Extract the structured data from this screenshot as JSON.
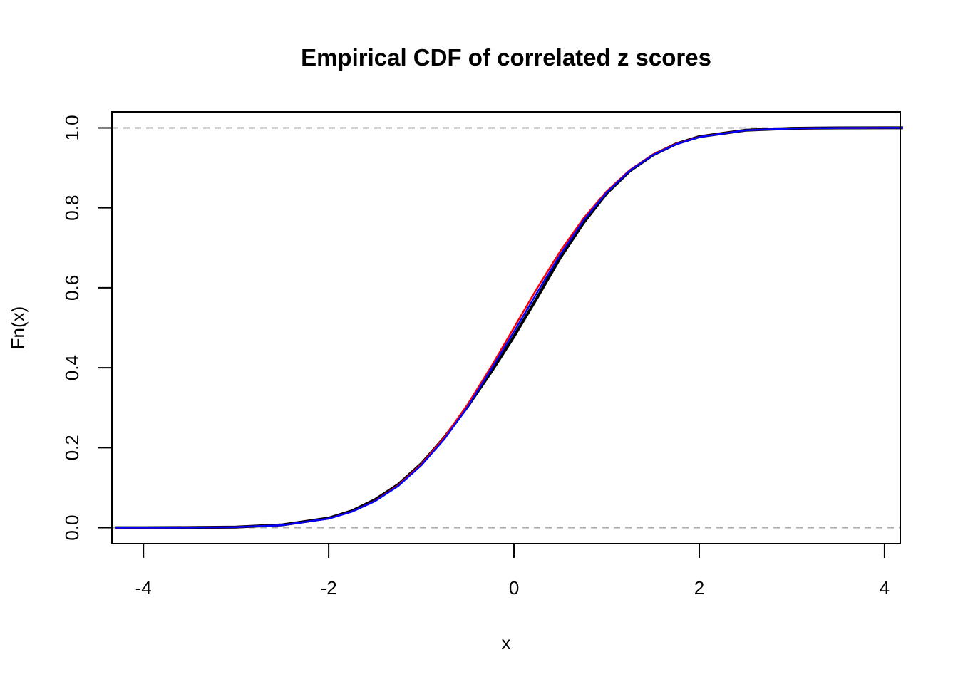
{
  "chart_data": {
    "type": "line",
    "title": "Empirical CDF of correlated z scores",
    "xlabel": "x",
    "ylabel": "Fn(x)",
    "xlim": [
      -4.34,
      4.17
    ],
    "ylim": [
      -0.04,
      1.04
    ],
    "xticks": [
      -4,
      -2,
      0,
      2,
      4
    ],
    "xtick_labels": [
      "-4",
      "-2",
      "0",
      "2",
      "4"
    ],
    "yticks": [
      0,
      0.2,
      0.4,
      0.6,
      0.8,
      1
    ],
    "ytick_labels": [
      "0.0",
      "0.2",
      "0.4",
      "0.6",
      "0.8",
      "1.0"
    ],
    "reference_lines": [
      0,
      1
    ],
    "reference_line_color": "#aaaaaa",
    "grid": false,
    "x": [
      -4.3,
      -4,
      -3.5,
      -3,
      -2.5,
      -2,
      -1.75,
      -1.5,
      -1.25,
      -1,
      -0.75,
      -0.5,
      -0.25,
      0,
      0.25,
      0.5,
      0.75,
      1,
      1.25,
      1.5,
      1.75,
      2,
      2.5,
      3,
      3.5,
      4,
      4.2
    ],
    "series": [
      {
        "color": "#000000",
        "values": [
          0,
          0,
          0.0002,
          0.0015,
          0.007,
          0.024,
          0.042,
          0.07,
          0.108,
          0.16,
          0.226,
          0.303,
          0.388,
          0.478,
          0.575,
          0.675,
          0.762,
          0.836,
          0.892,
          0.932,
          0.96,
          0.978,
          0.994,
          0.9988,
          0.9999,
          1,
          1
        ]
      },
      {
        "color": "#ff0000",
        "values": [
          1e-05,
          3e-05,
          0.0002,
          0.0013,
          0.0062,
          0.0228,
          0.0401,
          0.0668,
          0.1056,
          0.1587,
          0.2266,
          0.3085,
          0.4013,
          0.5,
          0.5987,
          0.6915,
          0.7734,
          0.8413,
          0.8944,
          0.9332,
          0.9599,
          0.9772,
          0.9938,
          0.9987,
          0.9998,
          1,
          1
        ]
      },
      {
        "color": "#0000ff",
        "values": [
          1e-05,
          3e-05,
          0.0002,
          0.0013,
          0.0062,
          0.0226,
          0.0398,
          0.066,
          0.104,
          0.156,
          0.222,
          0.302,
          0.395,
          0.49,
          0.588,
          0.683,
          0.768,
          0.838,
          0.893,
          0.932,
          0.959,
          0.977,
          0.9938,
          0.9987,
          0.9998,
          1,
          1
        ]
      }
    ]
  }
}
